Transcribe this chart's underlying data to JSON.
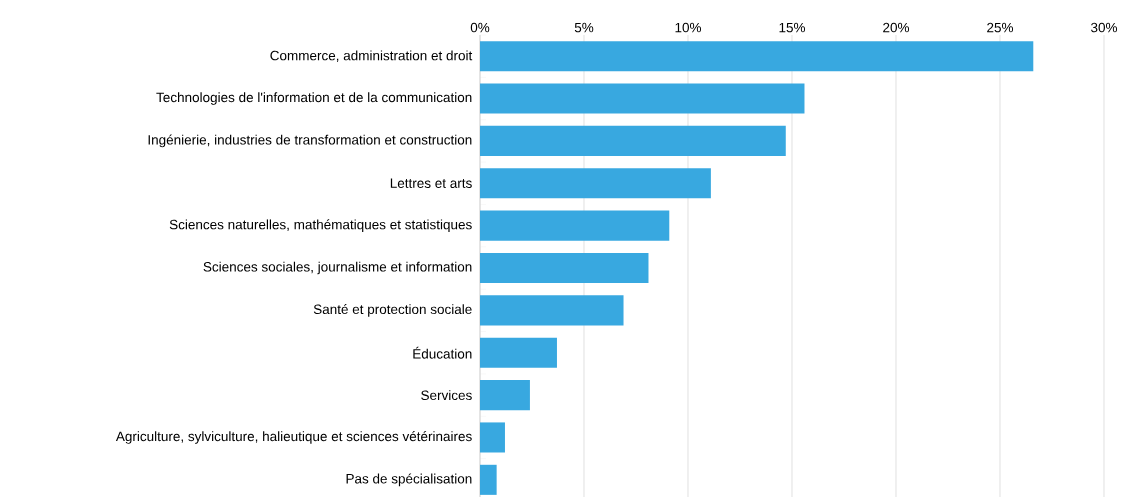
{
  "chart_data": {
    "type": "bar",
    "orientation": "horizontal",
    "categories": [
      "Commerce, administration et droit",
      "Technologies de l'information et de la communication",
      "Ingénierie, industries de transformation et construction",
      "Lettres et arts",
      "Sciences naturelles, mathématiques et statistiques",
      "Sciences sociales, journalisme et information",
      "Santé et protection sociale",
      "Éducation",
      "Services",
      "Agriculture, sylviculture, halieutique et sciences vétérinaires",
      "Pas de spécialisation"
    ],
    "values": [
      26.6,
      15.6,
      14.7,
      11.1,
      9.1,
      8.1,
      6.9,
      3.7,
      2.4,
      1.2,
      0.8
    ],
    "color": "#38a8e0",
    "xlim": [
      0,
      30
    ],
    "xticks": [
      {
        "value": 0,
        "label": "0%"
      },
      {
        "value": 5,
        "label": "5%"
      },
      {
        "value": 10,
        "label": "10%"
      },
      {
        "value": 15,
        "label": "15%"
      },
      {
        "value": 20,
        "label": "20%"
      },
      {
        "value": 25,
        "label": "25%"
      },
      {
        "value": 30,
        "label": "30%"
      }
    ],
    "grid": "x"
  }
}
